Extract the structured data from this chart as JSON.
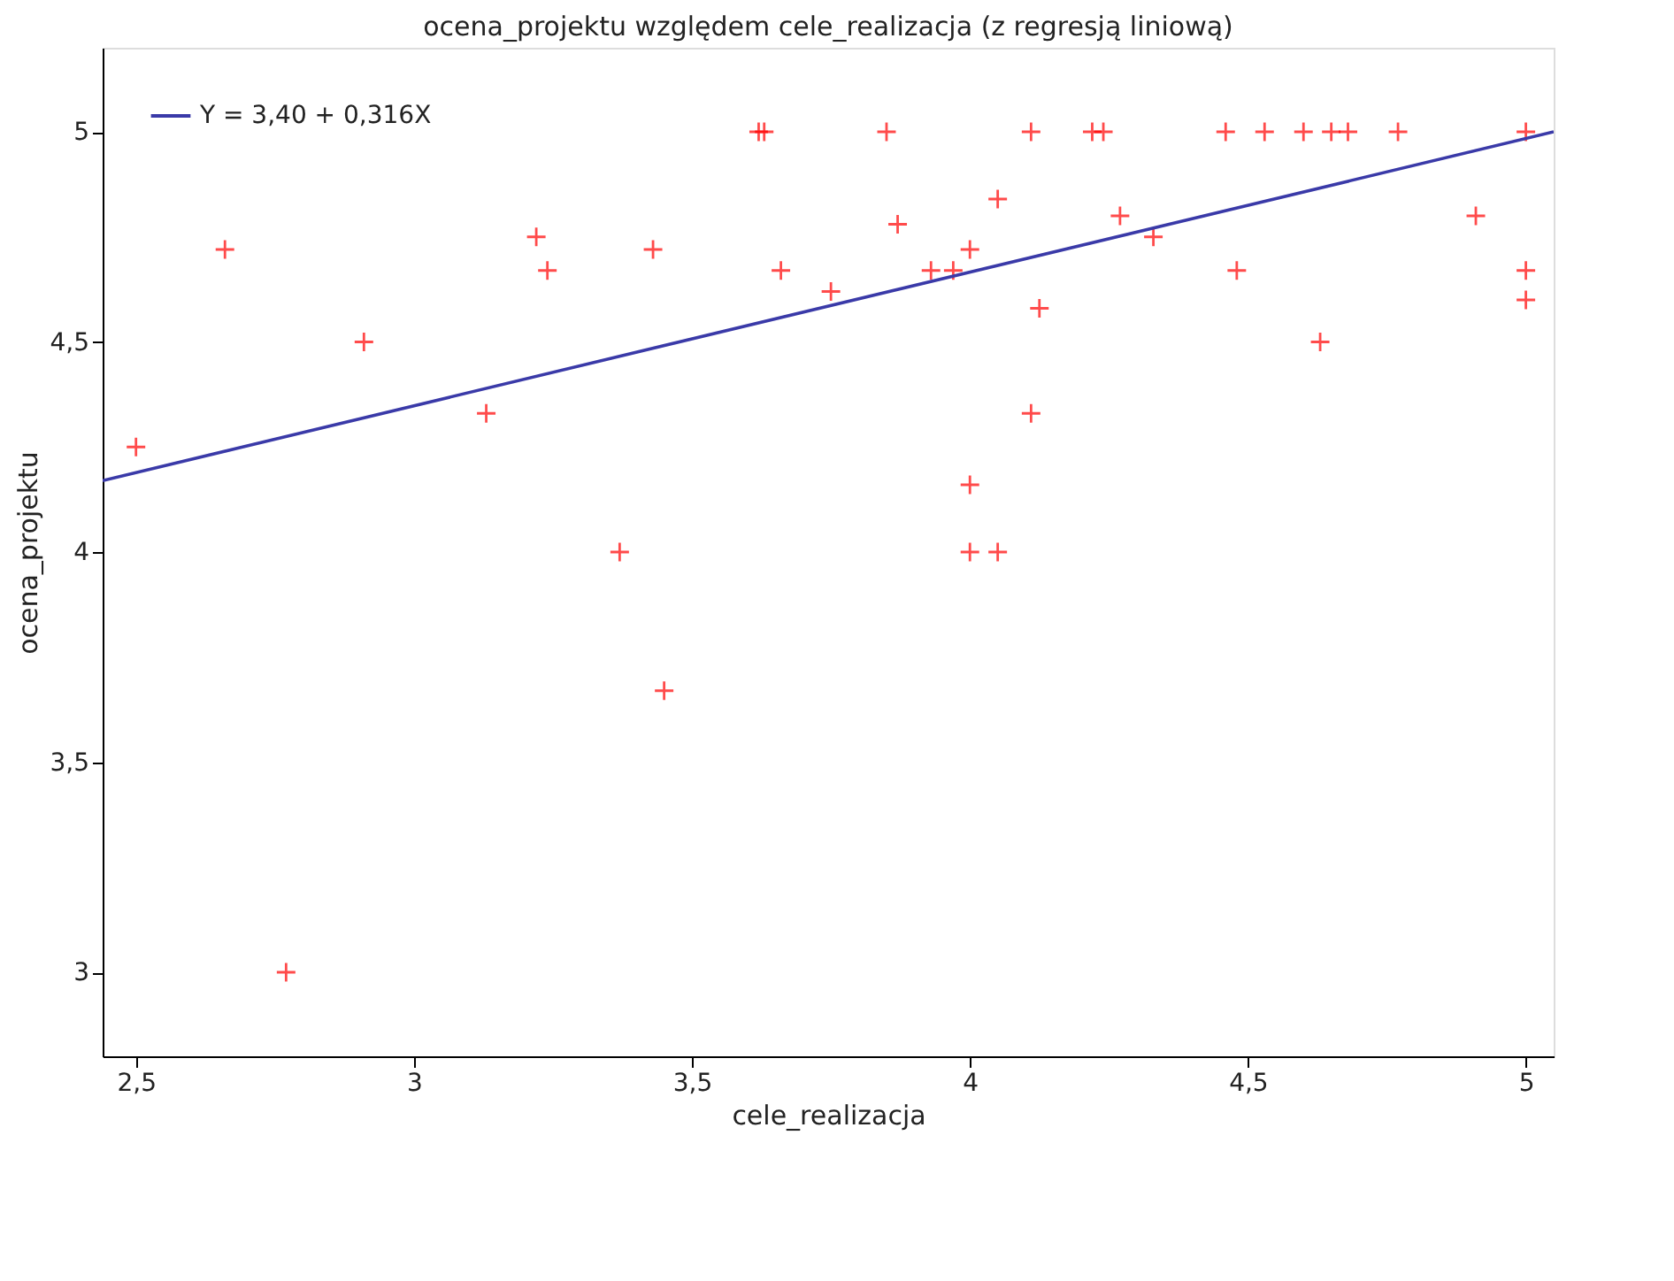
{
  "chart_data": {
    "type": "scatter",
    "title": "ocena_projektu względem cele_realizacja (z regresją liniową)",
    "xlabel": "cele_realizacja",
    "ylabel": "ocena_projektu",
    "xlim": [
      2.44,
      5.05
    ],
    "ylim": [
      2.8,
      5.2
    ],
    "xticks": [
      {
        "value": 2.5,
        "label": "2,5"
      },
      3,
      {
        "value": 3.5,
        "label": "3,5"
      },
      4,
      {
        "value": 4.5,
        "label": "4,5"
      },
      5
    ],
    "yticks": [
      3,
      {
        "value": 3.5,
        "label": "3,5"
      },
      4,
      {
        "value": 4.5,
        "label": "4,5"
      },
      5
    ],
    "grid": false,
    "legend": "top left",
    "series": [
      {
        "color": "#ff0000",
        "marker": "cross",
        "x": [
          2.5,
          2.66,
          2.77,
          2.91,
          3.13,
          3.22,
          3.24,
          3.37,
          3.43,
          3.45,
          3.62,
          3.63,
          3.66,
          3.75,
          3.85,
          3.87,
          3.93,
          3.97,
          4.0,
          4.0,
          4.0,
          4.05,
          4.05,
          4.11,
          4.11,
          4.125,
          4.22,
          4.24,
          4.27,
          4.33,
          4.46,
          4.48,
          4.53,
          4.6,
          4.63,
          4.65,
          4.68,
          4.77,
          4.91,
          5.0,
          5.0,
          5.0
        ],
        "values": [
          4.25,
          4.72,
          3.0,
          4.5,
          4.33,
          4.75,
          4.67,
          4.0,
          4.72,
          3.67,
          5.0,
          5.0,
          4.67,
          4.62,
          5.0,
          4.78,
          4.67,
          4.67,
          4.72,
          4.16,
          4.0,
          4.84,
          4.0,
          5.0,
          4.33,
          4.58,
          5.0,
          5.0,
          4.8,
          4.75,
          5.0,
          4.67,
          5.0,
          5.0,
          4.5,
          5.0,
          5.0,
          5.0,
          4.8,
          5.0,
          4.67,
          4.6
        ]
      },
      {
        "type": "line",
        "name": "Y = 3,40 + 0,316X",
        "color": "#3a3aa8",
        "line_style": "solid",
        "x": [
          2.44,
          5.05
        ],
        "values": [
          4.17,
          5.0
        ]
      }
    ]
  }
}
